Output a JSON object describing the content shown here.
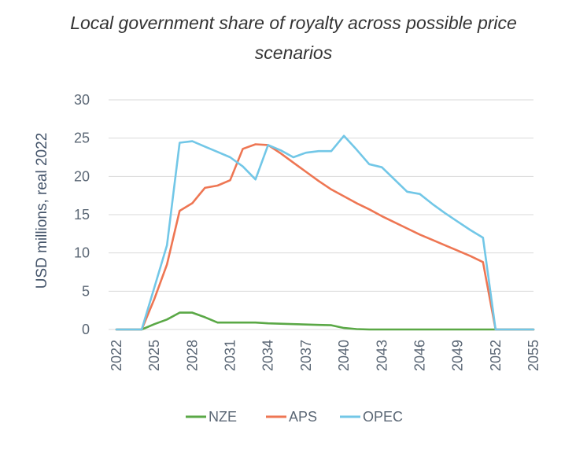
{
  "chart_data": {
    "type": "line",
    "title_line1": "Local government share of royalty across possible price",
    "title_line2": "scenarios",
    "ylabel": "USD millions, real 2022",
    "xlabel": "",
    "ylim": [
      0,
      30
    ],
    "xlim": [
      2022,
      2055
    ],
    "y_ticks": [
      0,
      5,
      10,
      15,
      20,
      25,
      30
    ],
    "x_ticks": [
      2022,
      2025,
      2028,
      2031,
      2034,
      2037,
      2040,
      2043,
      2046,
      2049,
      2052,
      2055
    ],
    "grid": true,
    "legend_position": "bottom",
    "x": [
      2022,
      2023,
      2024,
      2025,
      2026,
      2027,
      2028,
      2029,
      2030,
      2031,
      2032,
      2033,
      2034,
      2035,
      2036,
      2037,
      2038,
      2039,
      2040,
      2041,
      2042,
      2043,
      2044,
      2045,
      2046,
      2047,
      2048,
      2049,
      2050,
      2051,
      2052,
      2053,
      2054,
      2055
    ],
    "series": [
      {
        "name": "NZE",
        "color": "#5aa846",
        "values": [
          0,
          0,
          0,
          0.7,
          1.3,
          2.2,
          2.2,
          1.6,
          0.9,
          0.9,
          0.9,
          0.9,
          0.8,
          0.75,
          0.7,
          0.65,
          0.6,
          0.55,
          0.2,
          0.05,
          0,
          0,
          0,
          0,
          0,
          0,
          0,
          0,
          0,
          0,
          0,
          0,
          0,
          0
        ]
      },
      {
        "name": "APS",
        "color": "#ee7653",
        "values": [
          0,
          0,
          0,
          4,
          8.5,
          15.5,
          16.5,
          18.5,
          18.8,
          19.5,
          23.6,
          24.2,
          24.1,
          23,
          21.8,
          20.6,
          19.4,
          18.3,
          17.4,
          16.5,
          15.7,
          14.8,
          14,
          13.2,
          12.4,
          11.7,
          11,
          10.3,
          9.6,
          8.8,
          0,
          0,
          0,
          0
        ]
      },
      {
        "name": "OPEC",
        "color": "#72c7e7",
        "values": [
          0,
          0,
          0,
          5.5,
          11,
          24.4,
          24.6,
          23.9,
          23.2,
          22.5,
          21.3,
          19.6,
          24.1,
          23.4,
          22.5,
          23.1,
          23.3,
          23.3,
          25.3,
          23.5,
          21.6,
          21.2,
          19.6,
          18,
          17.7,
          16.4,
          15.2,
          14.1,
          13,
          12,
          0,
          0,
          0,
          0
        ]
      }
    ]
  }
}
